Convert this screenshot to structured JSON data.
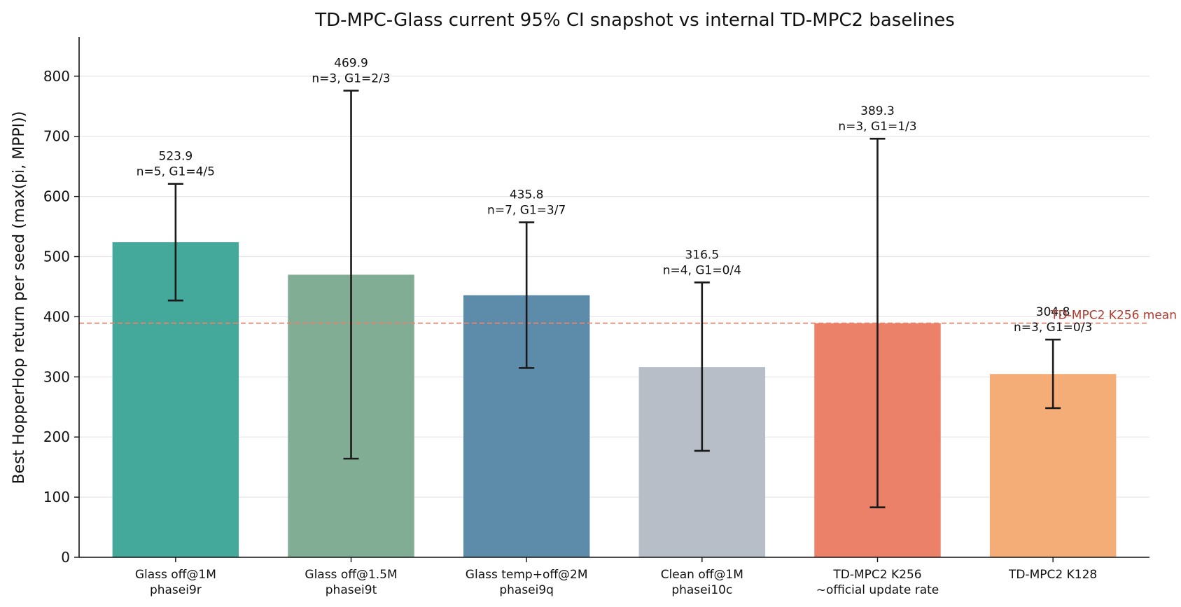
{
  "chart_data": {
    "type": "bar",
    "title": "TD-MPC-Glass current 95% CI snapshot vs internal TD-MPC2 baselines",
    "xlabel": "",
    "ylabel": "Best HopperHop return per seed (max(pi, MPPI))",
    "ylim": [
      0,
      865
    ],
    "yticks": [
      0,
      100,
      200,
      300,
      400,
      500,
      600,
      700,
      800
    ],
    "grid": "horizontal",
    "categories": [
      {
        "line1": "Glass off@1M",
        "line2": "phasei9r"
      },
      {
        "line1": "Glass off@1.5M",
        "line2": "phasei9t"
      },
      {
        "line1": "Glass temp+off@2M",
        "line2": "phasei9q"
      },
      {
        "line1": "Clean off@1M",
        "line2": "phasei10c"
      },
      {
        "line1": "TD-MPC2 K256",
        "line2": "~official update rate"
      },
      {
        "line1": "TD-MPC2 K128",
        "line2": ""
      }
    ],
    "bars": [
      {
        "value": 523.9,
        "ci_low": 427,
        "ci_high": 621,
        "value_label": "523.9",
        "n_label": "n=5, G1=4/5",
        "color": "#44a89a"
      },
      {
        "value": 469.9,
        "ci_low": 164,
        "ci_high": 776,
        "value_label": "469.9",
        "n_label": "n=3, G1=2/3",
        "color": "#82ad95"
      },
      {
        "value": 435.8,
        "ci_low": 315,
        "ci_high": 557,
        "value_label": "435.8",
        "n_label": "n=7, G1=3/7",
        "color": "#5d8cab"
      },
      {
        "value": 316.5,
        "ci_low": 177,
        "ci_high": 457,
        "value_label": "316.5",
        "n_label": "n=4, G1=0/4",
        "color": "#b7bec7"
      },
      {
        "value": 389.3,
        "ci_low": 83,
        "ci_high": 696,
        "value_label": "389.3",
        "n_label": "n=3, G1=1/3",
        "color": "#ea8168"
      },
      {
        "value": 304.8,
        "ci_low": 248,
        "ci_high": 362,
        "value_label": "304.8",
        "n_label": "n=3, G1=0/3",
        "color": "#f4ad76"
      }
    ],
    "reference_line": {
      "value": 389.3,
      "label": "TD-MPC2 K256 mean",
      "color": "#e8846c",
      "label_color": "#b03a2e"
    }
  }
}
